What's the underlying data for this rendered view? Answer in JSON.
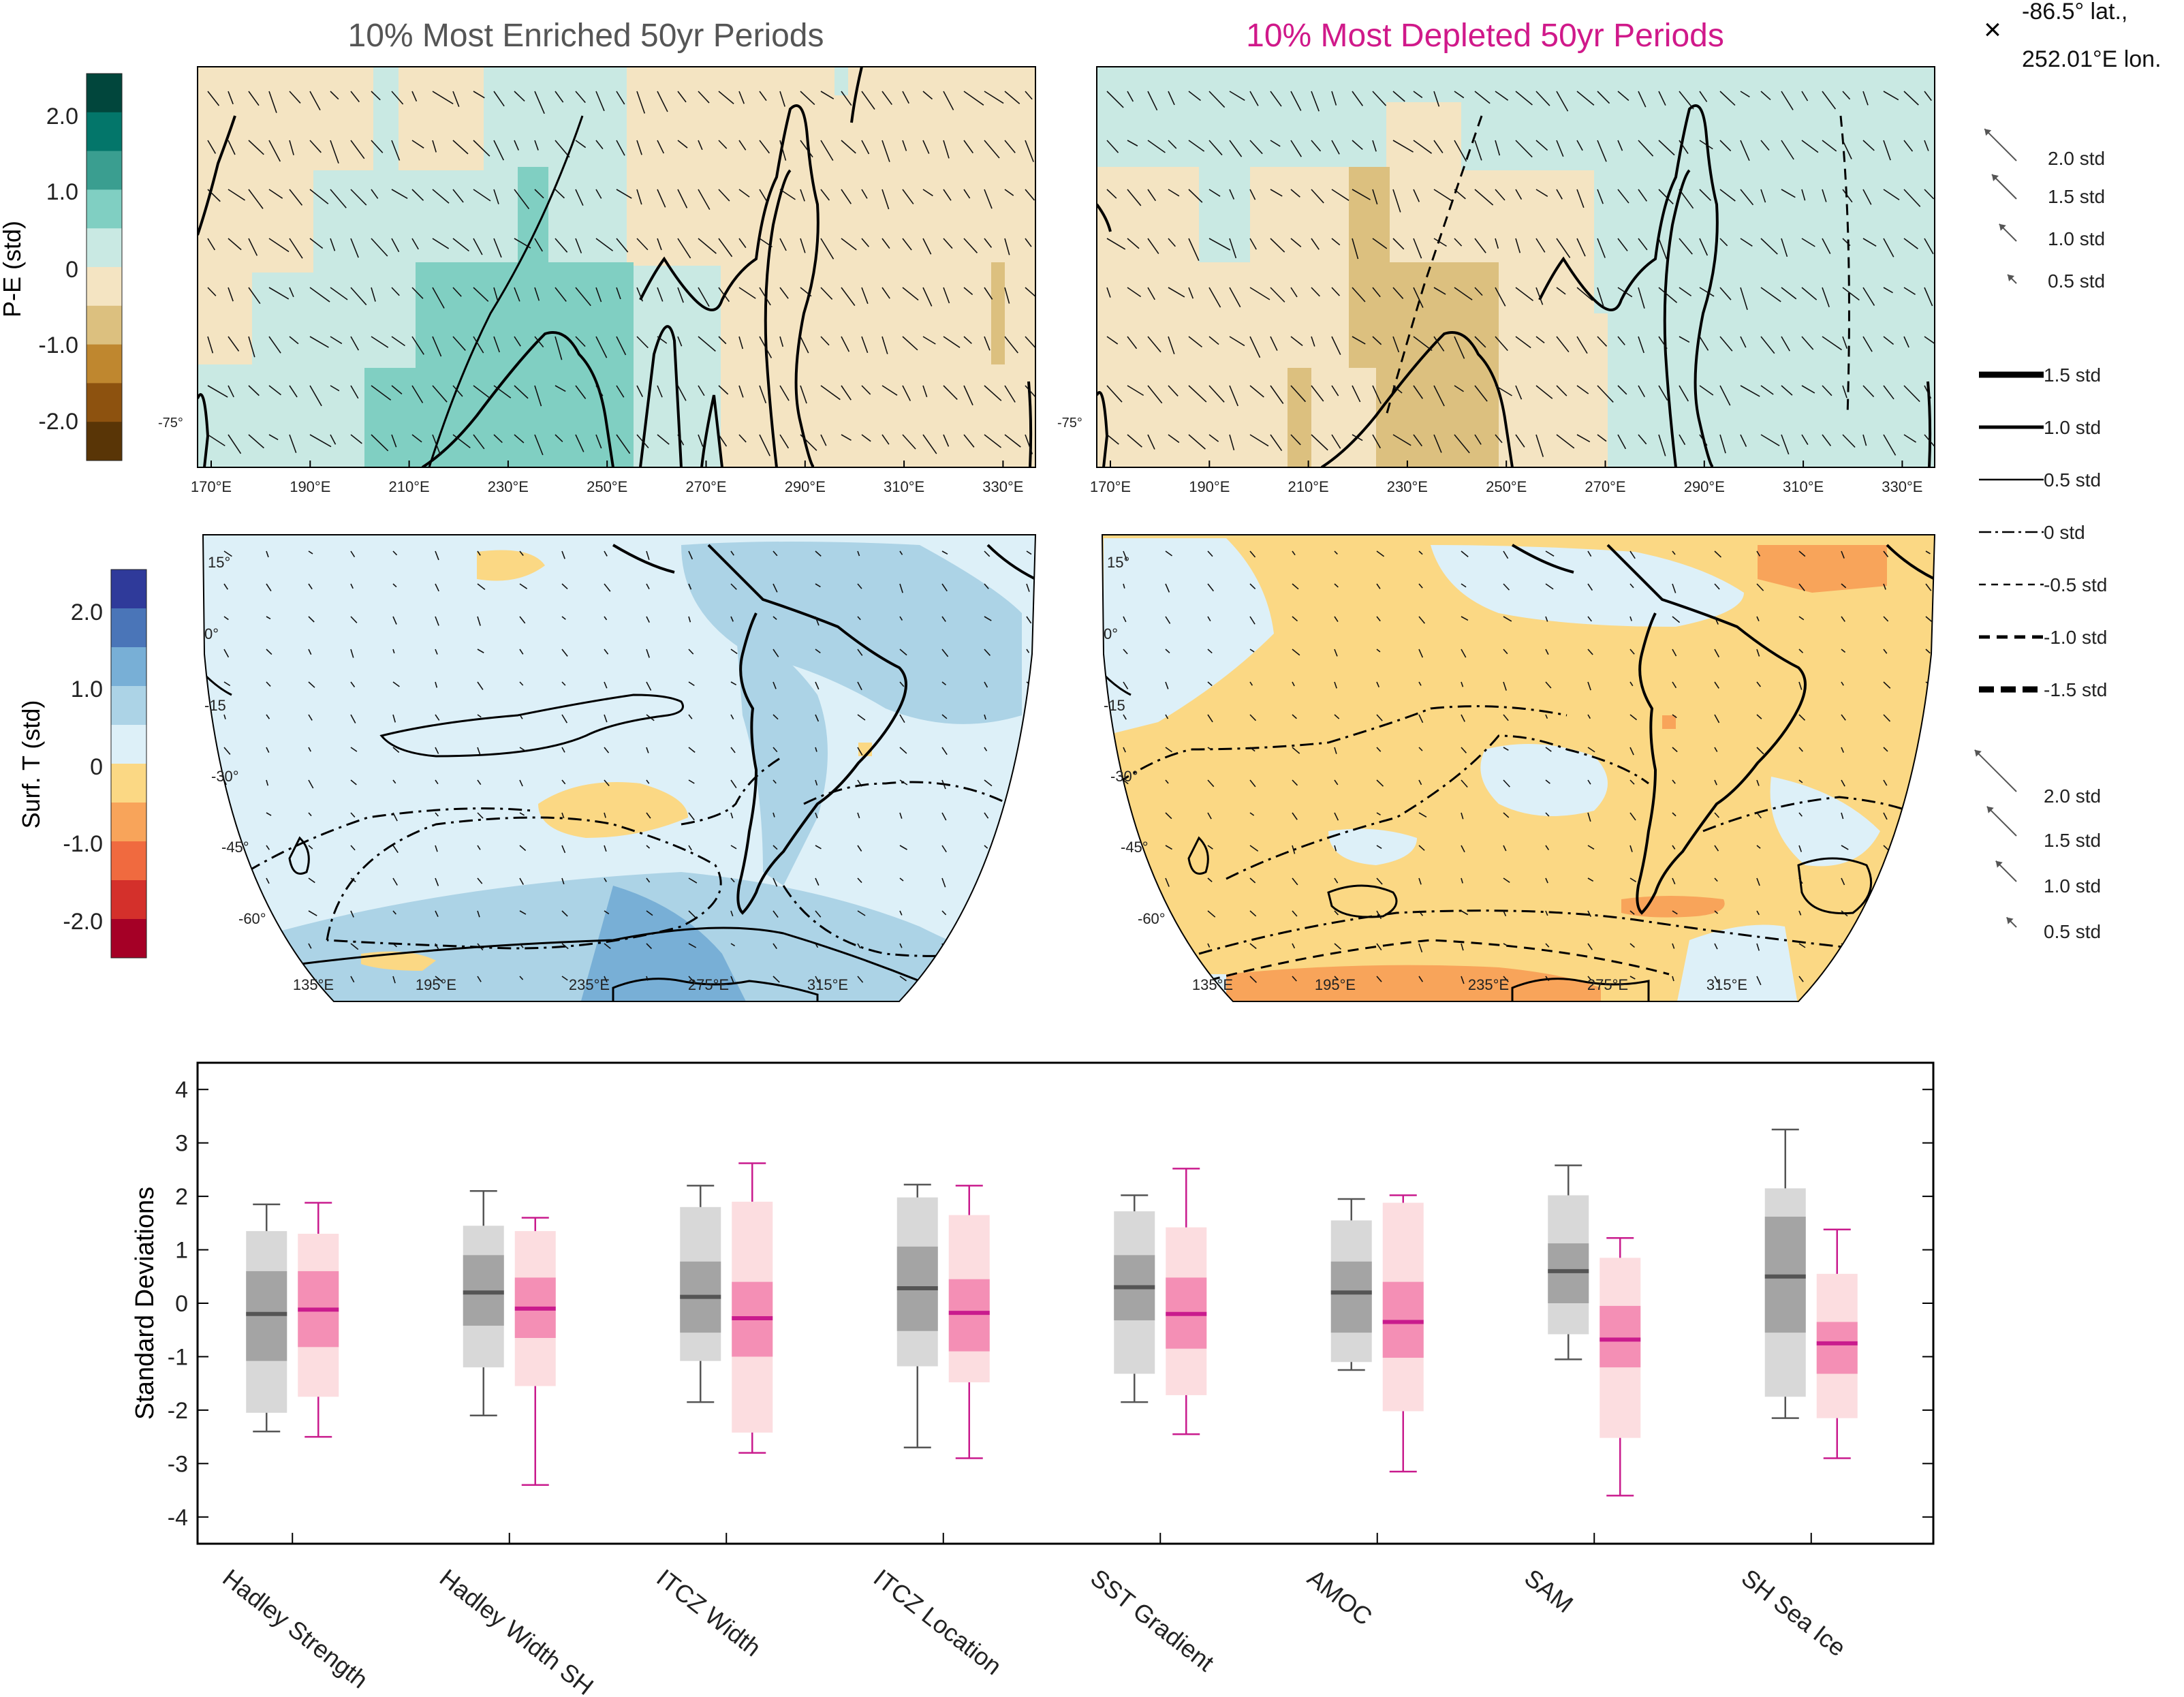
{
  "titles": {
    "enriched": "10% Most Enriched 50yr Periods",
    "depleted": "10% Most Depleted 50yr Periods",
    "enriched_color": "#555555",
    "depleted_color": "#d0198a"
  },
  "site": {
    "lat": "-86.5° lat.,",
    "lon": "252.01°E lon.",
    "marker": "×"
  },
  "pe_colorbar": {
    "label": "P-E (std)",
    "ticks": [
      "2.0",
      "1.0",
      "0",
      "-1.0",
      "-2.0"
    ],
    "colors": [
      "#01463c",
      "#03766a",
      "#3a9e90",
      "#80cfc2",
      "#c9e9e3",
      "#f4e4c2",
      "#dcc07f",
      "#bf872f",
      "#8d520f",
      "#593506"
    ]
  },
  "t_colorbar": {
    "label": "Surf. T (std)",
    "ticks": [
      "2.0",
      "1.0",
      "0",
      "-1.0",
      "-2.0"
    ],
    "colors": [
      "#2f3a9a",
      "#4a75b8",
      "#78afd6",
      "#acd3e6",
      "#ddf0f8",
      "#fbd884",
      "#f8a45a",
      "#f06a3f",
      "#d4302b",
      "#a50026"
    ]
  },
  "pe_maps": {
    "lon_ticks": [
      "170°E",
      "190°E",
      "210°E",
      "230°E",
      "250°E",
      "270°E",
      "290°E",
      "310°E",
      "330°E"
    ],
    "lat_label": "-75°"
  },
  "t_maps": {
    "lat_ticks": [
      "15°",
      "0°",
      "-15",
      "-30°",
      "-45°",
      "-60°"
    ],
    "lon_ticks": [
      "135°E",
      "195°E",
      "235°E",
      "275°E",
      "315°E"
    ]
  },
  "wind_legend_top": [
    "2.0 std",
    "1.5 std",
    "1.0 std",
    "0.5 std"
  ],
  "wind_legend_bottom": [
    "2.0 std",
    "1.5 std",
    "1.0 std",
    "0.5 std"
  ],
  "contour_legend": [
    "1.5 std",
    "1.0 std",
    "0.5 std",
    "0 std",
    "-0.5 std",
    "-1.0 std",
    "-1.5 std"
  ],
  "chart_data": {
    "type": "box",
    "ylabel": "Standard Deviations",
    "ylim": [
      -4.5,
      4.5
    ],
    "yticks": [
      "4",
      "3",
      "2",
      "1",
      "0",
      "-1",
      "-2",
      "-3",
      "-4"
    ],
    "categories": [
      "Hadley Strength",
      "Hadley Width SH",
      "ITCZ Width",
      "ITCZ Location",
      "SST Gradient",
      "AMOC",
      "SAM",
      "SH Sea Ice"
    ],
    "series": [
      {
        "name": "10% Most Enriched 50yr Periods",
        "color": "#555555",
        "light": "#d8d8d8",
        "dark": "#a4a4a4",
        "boxes": [
          {
            "wlo": -2.4,
            "p10": -2.05,
            "q1": -1.08,
            "med": -0.2,
            "q3": 0.6,
            "p90": 1.35,
            "whi": 1.85
          },
          {
            "wlo": -2.1,
            "p10": -1.2,
            "q1": -0.42,
            "med": 0.2,
            "q3": 0.9,
            "p90": 1.45,
            "whi": 2.1
          },
          {
            "wlo": -1.85,
            "p10": -1.08,
            "q1": -0.55,
            "med": 0.12,
            "q3": 0.78,
            "p90": 1.8,
            "whi": 2.2
          },
          {
            "wlo": -2.7,
            "p10": -1.18,
            "q1": -0.52,
            "med": 0.28,
            "q3": 1.06,
            "p90": 1.98,
            "whi": 2.22
          },
          {
            "wlo": -1.85,
            "p10": -1.32,
            "q1": -0.32,
            "med": 0.3,
            "q3": 0.9,
            "p90": 1.72,
            "whi": 2.02
          },
          {
            "wlo": -1.25,
            "p10": -1.1,
            "q1": -0.55,
            "med": 0.2,
            "q3": 0.78,
            "p90": 1.55,
            "whi": 1.95
          },
          {
            "wlo": -1.05,
            "p10": -0.58,
            "q1": 0.0,
            "med": 0.6,
            "q3": 1.12,
            "p90": 2.02,
            "whi": 2.58
          },
          {
            "wlo": -2.15,
            "p10": -1.75,
            "q1": -0.55,
            "med": 0.5,
            "q3": 1.62,
            "p90": 2.15,
            "whi": 3.25
          }
        ]
      },
      {
        "name": "10% Most Depleted 50yr Periods",
        "color": "#c91b8d",
        "light": "#fcdde0",
        "dark": "#f48fb5",
        "boxes": [
          {
            "wlo": -2.5,
            "p10": -1.75,
            "q1": -0.82,
            "med": -0.12,
            "q3": 0.6,
            "p90": 1.3,
            "whi": 1.88
          },
          {
            "wlo": -3.4,
            "p10": -1.55,
            "q1": -0.65,
            "med": -0.1,
            "q3": 0.48,
            "p90": 1.35,
            "whi": 1.6
          },
          {
            "wlo": -2.8,
            "p10": -2.42,
            "q1": -1.0,
            "med": -0.28,
            "q3": 0.4,
            "p90": 1.9,
            "whi": 2.62
          },
          {
            "wlo": -2.9,
            "p10": -1.48,
            "q1": -0.9,
            "med": -0.18,
            "q3": 0.45,
            "p90": 1.65,
            "whi": 2.2
          },
          {
            "wlo": -2.45,
            "p10": -1.72,
            "q1": -0.85,
            "med": -0.2,
            "q3": 0.48,
            "p90": 1.42,
            "whi": 2.52
          },
          {
            "wlo": -3.15,
            "p10": -2.02,
            "q1": -1.02,
            "med": -0.35,
            "q3": 0.4,
            "p90": 1.88,
            "whi": 2.02
          },
          {
            "wlo": -3.6,
            "p10": -2.52,
            "q1": -1.2,
            "med": -0.68,
            "q3": -0.05,
            "p90": 0.85,
            "whi": 1.22
          },
          {
            "wlo": -2.9,
            "p10": -2.15,
            "q1": -1.32,
            "med": -0.75,
            "q3": -0.35,
            "p90": 0.55,
            "whi": 1.38
          }
        ]
      }
    ]
  }
}
